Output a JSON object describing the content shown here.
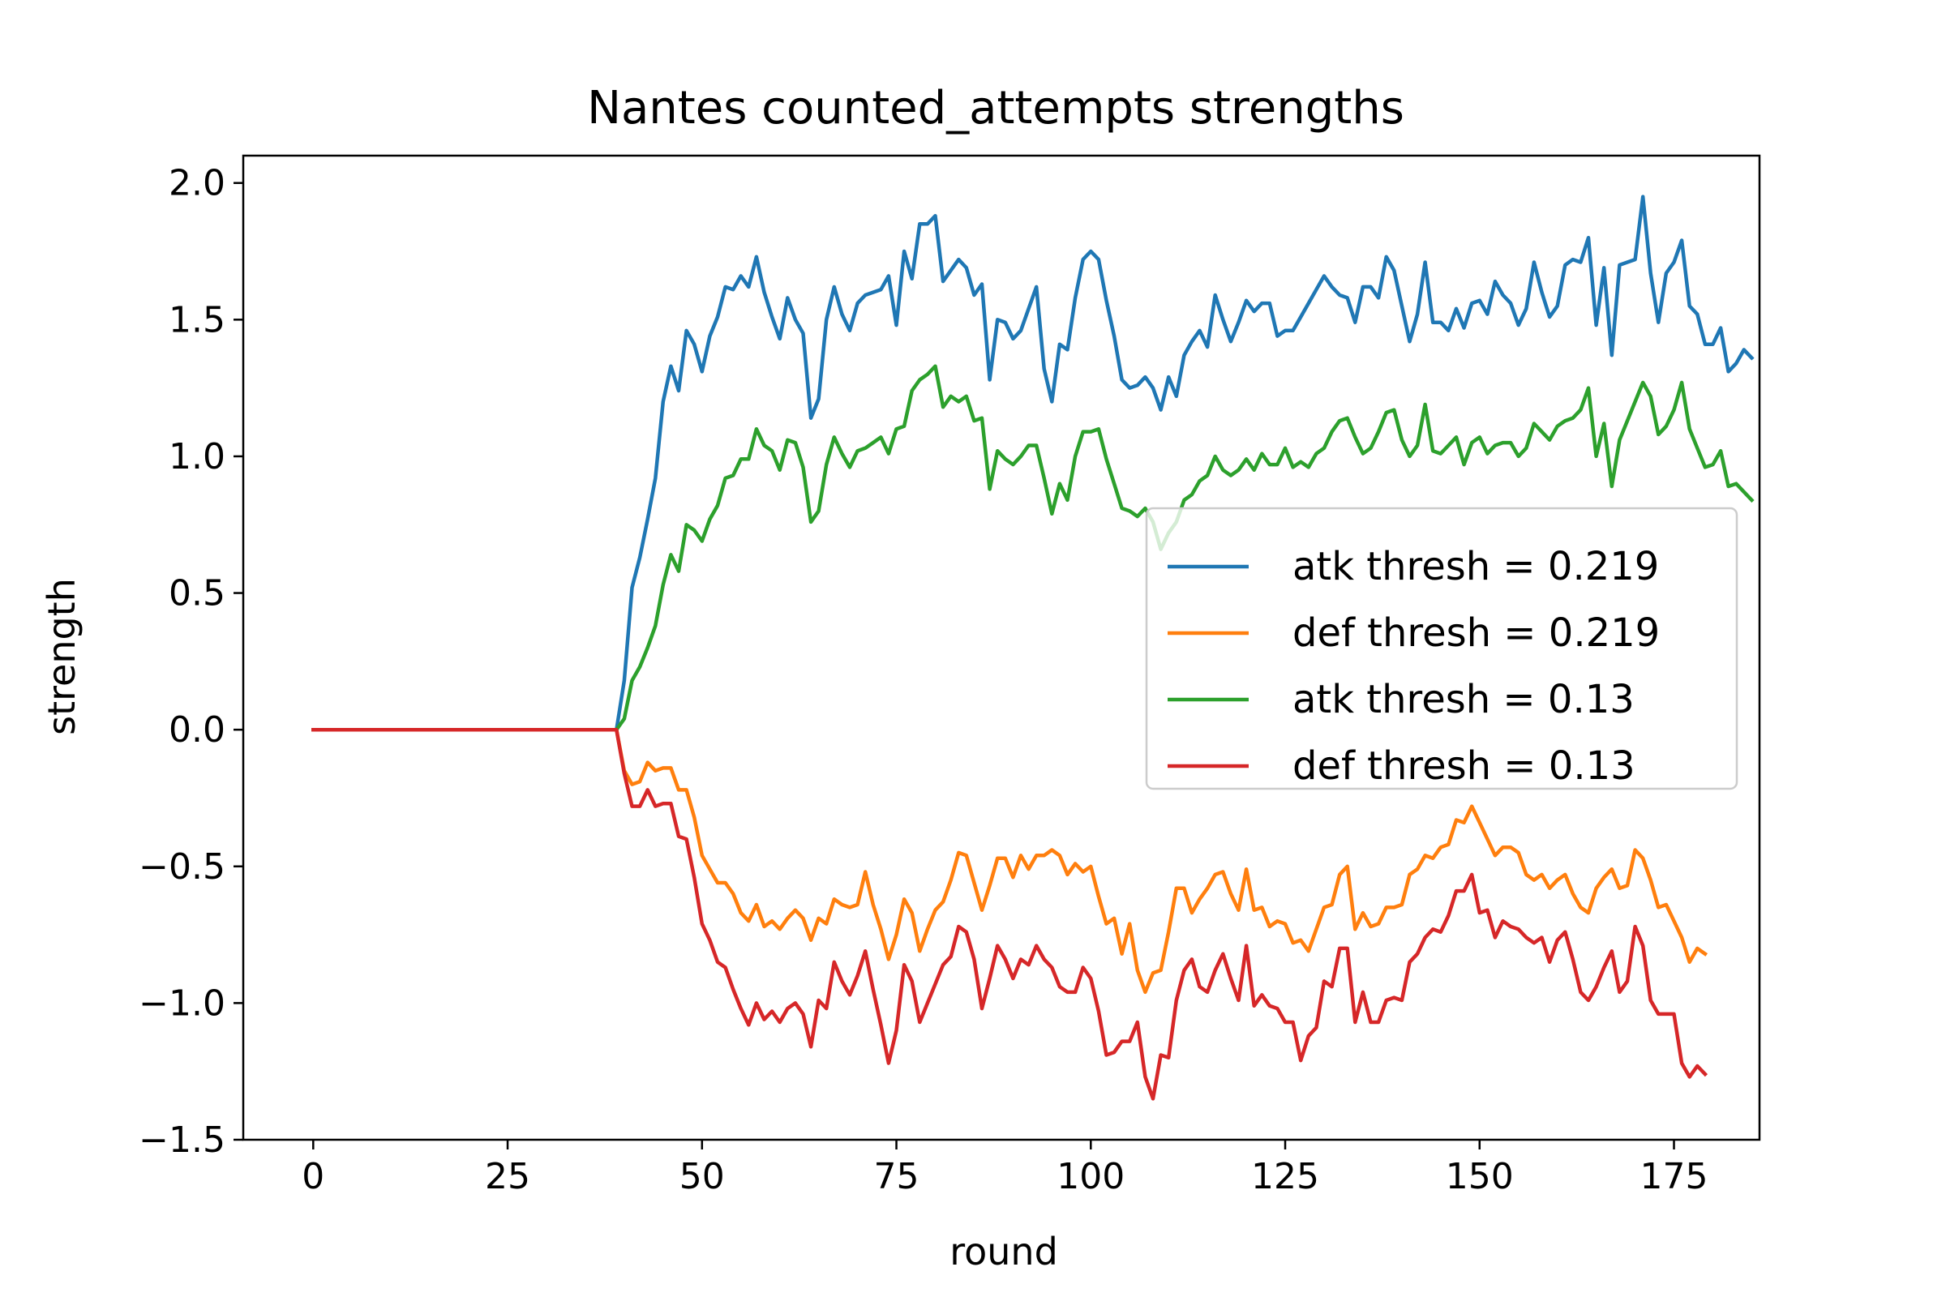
{
  "chart_data": {
    "type": "line",
    "title": "Nantes counted_attempts strengths",
    "xlabel": "round",
    "ylabel": "strength",
    "xlim": [
      -9,
      186
    ],
    "ylim": [
      -1.5,
      2.1
    ],
    "xticks": [
      0,
      25,
      50,
      75,
      100,
      125,
      150,
      175
    ],
    "yticks": [
      -1.5,
      -1.0,
      -0.5,
      0.0,
      0.5,
      1.0,
      1.5,
      2.0
    ],
    "xtick_labels": [
      "0",
      "25",
      "50",
      "75",
      "100",
      "125",
      "150",
      "175"
    ],
    "ytick_labels": [
      "−1.5",
      "−1.0",
      "−0.5",
      "0.0",
      "0.5",
      "1.0",
      "1.5",
      "2.0"
    ],
    "grid": false,
    "legend_position": "center-right",
    "x_start": 0,
    "series": [
      {
        "name": "atk thresh = 0.219",
        "color": "#1f77b4",
        "values": [
          0,
          0,
          0,
          0,
          0,
          0,
          0,
          0,
          0,
          0,
          0,
          0,
          0,
          0,
          0,
          0,
          0,
          0,
          0,
          0,
          0,
          0,
          0,
          0,
          0,
          0,
          0,
          0,
          0,
          0,
          0,
          0,
          0,
          0,
          0,
          0,
          0,
          0,
          0,
          0,
          0.18,
          0.52,
          0.63,
          0.77,
          0.92,
          1.2,
          1.33,
          1.24,
          1.46,
          1.41,
          1.31,
          1.44,
          1.51,
          1.62,
          1.61,
          1.66,
          1.62,
          1.73,
          1.6,
          1.51,
          1.43,
          1.58,
          1.5,
          1.45,
          1.14,
          1.21,
          1.5,
          1.62,
          1.52,
          1.46,
          1.56,
          1.59,
          1.6,
          1.61,
          1.66,
          1.48,
          1.75,
          1.65,
          1.85,
          1.85,
          1.88,
          1.64,
          1.68,
          1.72,
          1.69,
          1.59,
          1.63,
          1.28,
          1.5,
          1.49,
          1.43,
          1.46,
          1.54,
          1.62,
          1.32,
          1.2,
          1.41,
          1.39,
          1.58,
          1.72,
          1.75,
          1.72,
          1.57,
          1.44,
          1.28,
          1.25,
          1.26,
          1.29,
          1.25,
          1.17,
          1.29,
          1.22,
          1.37,
          1.42,
          1.46,
          1.4,
          1.59,
          1.5,
          1.42,
          1.49,
          1.57,
          1.53,
          1.56,
          1.56,
          1.44,
          1.46,
          1.46,
          1.51,
          1.56,
          1.61,
          1.66,
          1.62,
          1.59,
          1.58,
          1.49,
          1.62,
          1.62,
          1.58,
          1.73,
          1.68,
          1.55,
          1.42,
          1.52,
          1.71,
          1.49,
          1.49,
          1.46,
          1.54,
          1.47,
          1.56,
          1.57,
          1.52,
          1.64,
          1.59,
          1.56,
          1.48,
          1.54,
          1.71,
          1.6,
          1.51,
          1.55,
          1.7,
          1.72,
          1.71,
          1.8,
          1.48,
          1.69,
          1.37,
          1.7,
          1.71,
          1.72,
          1.95,
          1.67,
          1.49,
          1.67,
          1.71,
          1.79,
          1.55,
          1.52,
          1.41,
          1.41,
          1.47,
          1.31,
          1.34,
          1.39,
          1.36
        ]
      },
      {
        "name": "def thresh = 0.219",
        "color": "#ff7f0e",
        "values": [
          0,
          0,
          0,
          0,
          0,
          0,
          0,
          0,
          0,
          0,
          0,
          0,
          0,
          0,
          0,
          0,
          0,
          0,
          0,
          0,
          0,
          0,
          0,
          0,
          0,
          0,
          0,
          0,
          0,
          0,
          0,
          0,
          0,
          0,
          0,
          0,
          0,
          0,
          0,
          0,
          -0.15,
          -0.2,
          -0.19,
          -0.12,
          -0.15,
          -0.14,
          -0.14,
          -0.22,
          -0.22,
          -0.32,
          -0.46,
          -0.51,
          -0.56,
          -0.56,
          -0.6,
          -0.67,
          -0.7,
          -0.64,
          -0.72,
          -0.7,
          -0.73,
          -0.69,
          -0.66,
          -0.69,
          -0.77,
          -0.69,
          -0.71,
          -0.62,
          -0.64,
          -0.65,
          -0.64,
          -0.52,
          -0.64,
          -0.73,
          -0.84,
          -0.75,
          -0.62,
          -0.67,
          -0.81,
          -0.73,
          -0.66,
          -0.63,
          -0.55,
          -0.45,
          -0.46,
          -0.56,
          -0.66,
          -0.57,
          -0.47,
          -0.47,
          -0.54,
          -0.46,
          -0.51,
          -0.46,
          -0.46,
          -0.44,
          -0.46,
          -0.53,
          -0.49,
          -0.52,
          -0.5,
          -0.61,
          -0.71,
          -0.69,
          -0.82,
          -0.71,
          -0.88,
          -0.96,
          -0.89,
          -0.88,
          -0.74,
          -0.58,
          -0.58,
          -0.67,
          -0.62,
          -0.58,
          -0.53,
          -0.52,
          -0.6,
          -0.66,
          -0.51,
          -0.66,
          -0.65,
          -0.72,
          -0.7,
          -0.71,
          -0.78,
          -0.77,
          -0.81,
          -0.73,
          -0.65,
          -0.64,
          -0.53,
          -0.5,
          -0.73,
          -0.67,
          -0.72,
          -0.71,
          -0.65,
          -0.65,
          -0.64,
          -0.53,
          -0.51,
          -0.46,
          -0.47,
          -0.43,
          -0.42,
          -0.33,
          -0.34,
          -0.28,
          -0.34,
          -0.4,
          -0.46,
          -0.43,
          -0.43,
          -0.45,
          -0.53,
          -0.55,
          -0.53,
          -0.58,
          -0.55,
          -0.53,
          -0.6,
          -0.65,
          -0.67,
          -0.58,
          -0.54,
          -0.51,
          -0.58,
          -0.57,
          -0.44,
          -0.47,
          -0.55,
          -0.65,
          -0.64,
          -0.7,
          -0.76,
          -0.85,
          -0.8,
          -0.82
        ]
      },
      {
        "name": "atk thresh = 0.13",
        "color": "#2ca02c",
        "values": [
          0,
          0,
          0,
          0,
          0,
          0,
          0,
          0,
          0,
          0,
          0,
          0,
          0,
          0,
          0,
          0,
          0,
          0,
          0,
          0,
          0,
          0,
          0,
          0,
          0,
          0,
          0,
          0,
          0,
          0,
          0,
          0,
          0,
          0,
          0,
          0,
          0,
          0,
          0,
          0,
          0.04,
          0.18,
          0.23,
          0.3,
          0.38,
          0.53,
          0.64,
          0.58,
          0.75,
          0.73,
          0.69,
          0.77,
          0.82,
          0.92,
          0.93,
          0.99,
          0.99,
          1.1,
          1.04,
          1.02,
          0.95,
          1.06,
          1.05,
          0.96,
          0.76,
          0.8,
          0.97,
          1.07,
          1.01,
          0.96,
          1.02,
          1.03,
          1.05,
          1.07,
          1.01,
          1.1,
          1.11,
          1.24,
          1.28,
          1.3,
          1.33,
          1.18,
          1.22,
          1.2,
          1.22,
          1.13,
          1.14,
          0.88,
          1.02,
          0.99,
          0.97,
          1.0,
          1.04,
          1.04,
          0.92,
          0.79,
          0.9,
          0.84,
          1.0,
          1.09,
          1.09,
          1.1,
          0.99,
          0.9,
          0.81,
          0.8,
          0.78,
          0.81,
          0.76,
          0.66,
          0.72,
          0.76,
          0.84,
          0.86,
          0.91,
          0.93,
          1.0,
          0.95,
          0.93,
          0.95,
          0.99,
          0.95,
          1.01,
          0.97,
          0.97,
          1.03,
          0.96,
          0.98,
          0.96,
          1.01,
          1.03,
          1.09,
          1.13,
          1.14,
          1.07,
          1.01,
          1.03,
          1.09,
          1.16,
          1.17,
          1.06,
          1.0,
          1.04,
          1.19,
          1.02,
          1.01,
          1.04,
          1.07,
          0.97,
          1.05,
          1.07,
          1.01,
          1.04,
          1.05,
          1.05,
          1.0,
          1.03,
          1.12,
          1.09,
          1.06,
          1.11,
          1.13,
          1.14,
          1.17,
          1.25,
          1.0,
          1.12,
          0.89,
          1.06,
          1.13,
          1.2,
          1.27,
          1.22,
          1.08,
          1.11,
          1.17,
          1.27,
          1.1,
          1.03,
          0.96,
          0.97,
          1.02,
          0.89,
          0.9,
          0.87,
          0.84
        ]
      },
      {
        "name": "def thresh = 0.13",
        "color": "#d62728",
        "values": [
          0,
          0,
          0,
          0,
          0,
          0,
          0,
          0,
          0,
          0,
          0,
          0,
          0,
          0,
          0,
          0,
          0,
          0,
          0,
          0,
          0,
          0,
          0,
          0,
          0,
          0,
          0,
          0,
          0,
          0,
          0,
          0,
          0,
          0,
          0,
          0,
          0,
          0,
          0,
          0,
          -0.16,
          -0.28,
          -0.28,
          -0.22,
          -0.28,
          -0.27,
          -0.27,
          -0.39,
          -0.4,
          -0.54,
          -0.71,
          -0.77,
          -0.85,
          -0.87,
          -0.95,
          -1.02,
          -1.08,
          -1.0,
          -1.06,
          -1.03,
          -1.07,
          -1.02,
          -1.0,
          -1.04,
          -1.16,
          -0.99,
          -1.02,
          -0.85,
          -0.92,
          -0.97,
          -0.9,
          -0.81,
          -0.95,
          -1.08,
          -1.22,
          -1.1,
          -0.86,
          -0.92,
          -1.07,
          -1.0,
          -0.93,
          -0.86,
          -0.83,
          -0.72,
          -0.74,
          -0.84,
          -1.02,
          -0.91,
          -0.79,
          -0.84,
          -0.91,
          -0.84,
          -0.86,
          -0.79,
          -0.84,
          -0.87,
          -0.94,
          -0.96,
          -0.96,
          -0.87,
          -0.91,
          -1.03,
          -1.19,
          -1.18,
          -1.14,
          -1.14,
          -1.07,
          -1.27,
          -1.35,
          -1.19,
          -1.2,
          -0.99,
          -0.88,
          -0.84,
          -0.94,
          -0.96,
          -0.88,
          -0.82,
          -0.91,
          -0.99,
          -0.79,
          -1.01,
          -0.97,
          -1.01,
          -1.02,
          -1.07,
          -1.07,
          -1.21,
          -1.12,
          -1.09,
          -0.92,
          -0.94,
          -0.8,
          -0.8,
          -1.07,
          -0.96,
          -1.07,
          -1.07,
          -0.99,
          -0.98,
          -0.99,
          -0.85,
          -0.82,
          -0.76,
          -0.73,
          -0.74,
          -0.68,
          -0.59,
          -0.59,
          -0.53,
          -0.67,
          -0.66,
          -0.76,
          -0.7,
          -0.72,
          -0.73,
          -0.76,
          -0.78,
          -0.76,
          -0.85,
          -0.77,
          -0.74,
          -0.84,
          -0.96,
          -0.99,
          -0.94,
          -0.87,
          -0.81,
          -0.96,
          -0.92,
          -0.72,
          -0.79,
          -0.99,
          -1.04,
          -1.04,
          -1.04,
          -1.22,
          -1.27,
          -1.23,
          -1.26
        ]
      }
    ]
  }
}
